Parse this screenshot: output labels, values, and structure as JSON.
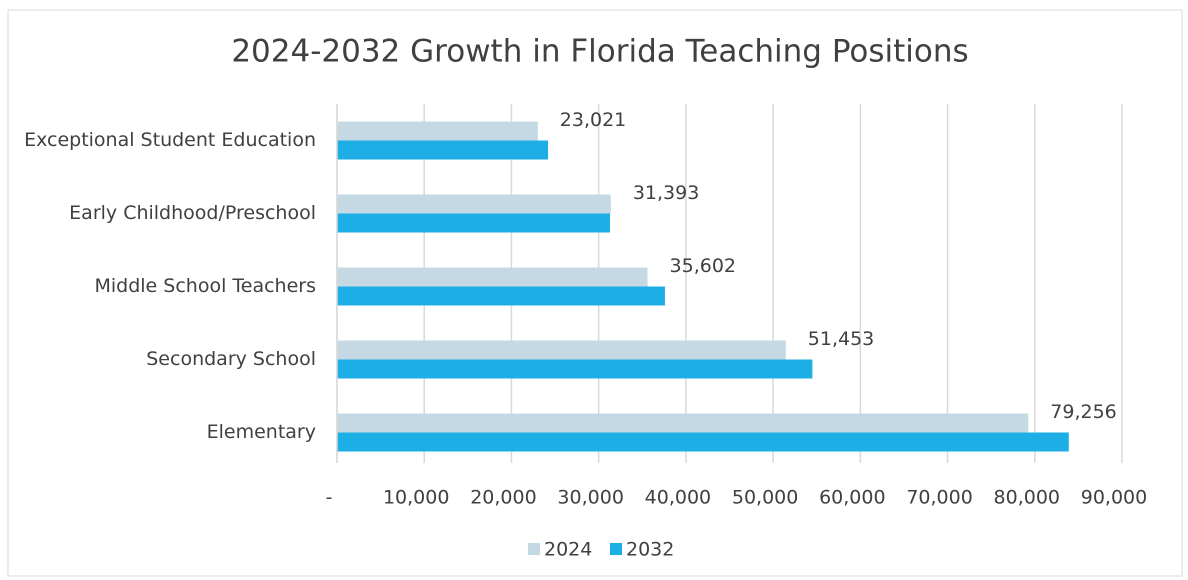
{
  "chart_data": {
    "type": "bar",
    "orientation": "horizontal",
    "title": "2024-2032 Growth in Florida Teaching Positions",
    "categories": [
      "Exceptional Student Education",
      "Early Childhood/Preschool",
      "Middle School Teachers",
      "Secondary School",
      "Elementary"
    ],
    "series": [
      {
        "name": "2024",
        "color": "#c5d9e5",
        "values": [
          23021,
          31393,
          35602,
          51453,
          79256
        ],
        "value_labels": [
          "23,021",
          "31,393",
          "35,602",
          "51,453",
          "79,256"
        ]
      },
      {
        "name": "2032",
        "color": "#1eaee6",
        "values": [
          24200,
          31300,
          37600,
          54500,
          83900
        ]
      }
    ],
    "xlim": [
      0,
      90000
    ],
    "xticks": [
      {
        "value": 0,
        "label": "-"
      },
      {
        "value": 10000,
        "label": "10,000"
      },
      {
        "value": 20000,
        "label": "20,000"
      },
      {
        "value": 30000,
        "label": "30,000"
      },
      {
        "value": 40000,
        "label": "40,000"
      },
      {
        "value": 50000,
        "label": "50,000"
      },
      {
        "value": 60000,
        "label": "60,000"
      },
      {
        "value": 70000,
        "label": "70,000"
      },
      {
        "value": 80000,
        "label": "80,000"
      },
      {
        "value": 90000,
        "label": "90,000"
      }
    ],
    "grid": true,
    "legend": "bottom"
  }
}
